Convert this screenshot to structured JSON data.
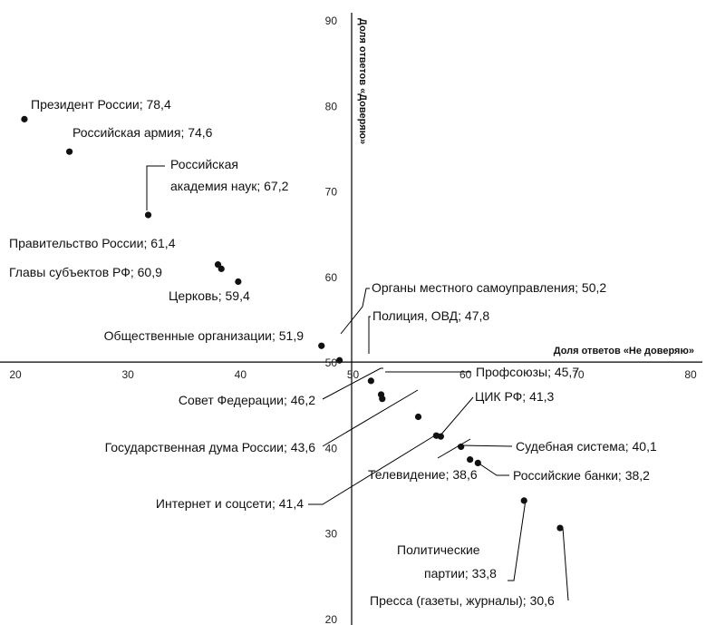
{
  "chart_data": {
    "type": "scatter",
    "xlabel": "Доля ответов «Не доверяю»",
    "ylabel": "Доля ответов «Доверяю»",
    "xlim": [
      20,
      80
    ],
    "ylim": [
      20,
      90
    ],
    "x_ticks": [
      "20",
      "30",
      "40",
      "50",
      "60",
      "70",
      "80"
    ],
    "y_ticks": [
      "20",
      "30",
      "40",
      "50",
      "60",
      "70",
      "80",
      "90"
    ],
    "grid": false,
    "colors": {
      "axis": "#000000",
      "point": "#111111",
      "text": "#111111"
    },
    "points": [
      {
        "x": 20.8,
        "y": 78.4,
        "label": "Президент России; 78,4"
      },
      {
        "x": 24.8,
        "y": 74.6,
        "label": "Российская армия; 74,6"
      },
      {
        "x": 31.8,
        "y": 67.2,
        "label": "Российская",
        "label2": "академия наук; 67,2"
      },
      {
        "x": 38.0,
        "y": 61.4,
        "label": "Правительство России; 61,4"
      },
      {
        "x": 38.3,
        "y": 60.9,
        "label": "Главы субъектов РФ; 60,9"
      },
      {
        "x": 39.8,
        "y": 59.4,
        "label": "Церковь; 59,4"
      },
      {
        "x": 47.2,
        "y": 51.9,
        "label": "Общественные организации; 51,9"
      },
      {
        "x": 48.8,
        "y": 50.2,
        "label": "Органы местного самоуправления; 50,2"
      },
      {
        "x": 51.6,
        "y": 47.8,
        "label": "Полиция, ОВД; 47,8"
      },
      {
        "x": 52.6,
        "y": 45.7,
        "label": "Профсоюзы; 45,7"
      },
      {
        "x": 52.5,
        "y": 46.2,
        "label": "Совет Федерации; 46,2"
      },
      {
        "x": 55.8,
        "y": 43.6,
        "label": "Государственная дума России; 43,6"
      },
      {
        "x": 57.8,
        "y": 41.3,
        "label": "ЦИК РФ; 41,3"
      },
      {
        "x": 57.4,
        "y": 41.4,
        "label": "Интернет и соцсети; 41,4"
      },
      {
        "x": 59.6,
        "y": 40.1,
        "label": "Судебная система; 40,1"
      },
      {
        "x": 61.1,
        "y": 38.2,
        "label": "Российские банки; 38,2"
      },
      {
        "x": 60.4,
        "y": 38.6,
        "label": "Телевидение; 38,6"
      },
      {
        "x": 65.2,
        "y": 33.8,
        "label": "Политические",
        "label2": "партии; 33,8"
      },
      {
        "x": 68.4,
        "y": 30.6,
        "label": "Пресса (газеты, журналы); 30,6"
      }
    ]
  }
}
